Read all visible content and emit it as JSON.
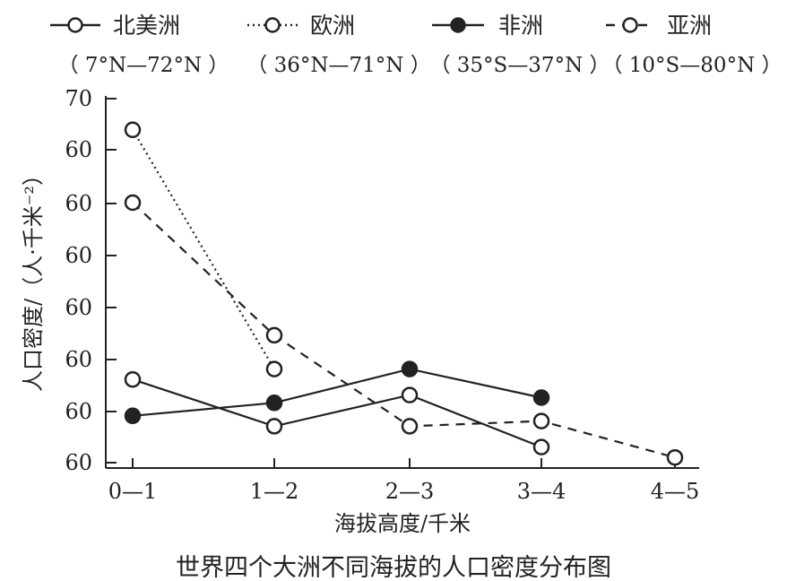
{
  "chart_data": {
    "type": "line",
    "title": "世界四个大洲不同海拔的人口密度分布图",
    "xlabel": "海拔高度/千米",
    "ylabel": "人口密度/（人·千米⁻²）",
    "categories": [
      "0—1",
      "1—2",
      "2—3",
      "3—4",
      "4—5"
    ],
    "y_tick_labels": [
      "60",
      "60",
      "60",
      "60",
      "60",
      "60",
      "60",
      "70"
    ],
    "ylim": [
      0,
      70
    ],
    "grid": false,
    "legend_position": "top",
    "series": [
      {
        "name": "北美洲",
        "range": "（ 7°N—72°N ）",
        "line_style": "solid",
        "marker": "open-circle",
        "values": [
          16,
          7,
          13,
          3,
          null
        ]
      },
      {
        "name": "欧洲",
        "range": "（ 36°N—71°N ）",
        "line_style": "dotted",
        "marker": "open-circle",
        "values": [
          64,
          18,
          null,
          null,
          null
        ]
      },
      {
        "name": "非洲",
        "range": "（ 35°S—37°N ）",
        "line_style": "solid",
        "marker": "filled-circle",
        "values": [
          9,
          11.5,
          18,
          12.5,
          null
        ]
      },
      {
        "name": "亚洲",
        "range": "（ 10°S—80°N ）",
        "line_style": "dashed",
        "marker": "open-circle",
        "values": [
          50,
          24.5,
          7,
          8,
          1
        ]
      }
    ]
  },
  "colors": {
    "ink": "#222222",
    "background": "#ffffff"
  }
}
